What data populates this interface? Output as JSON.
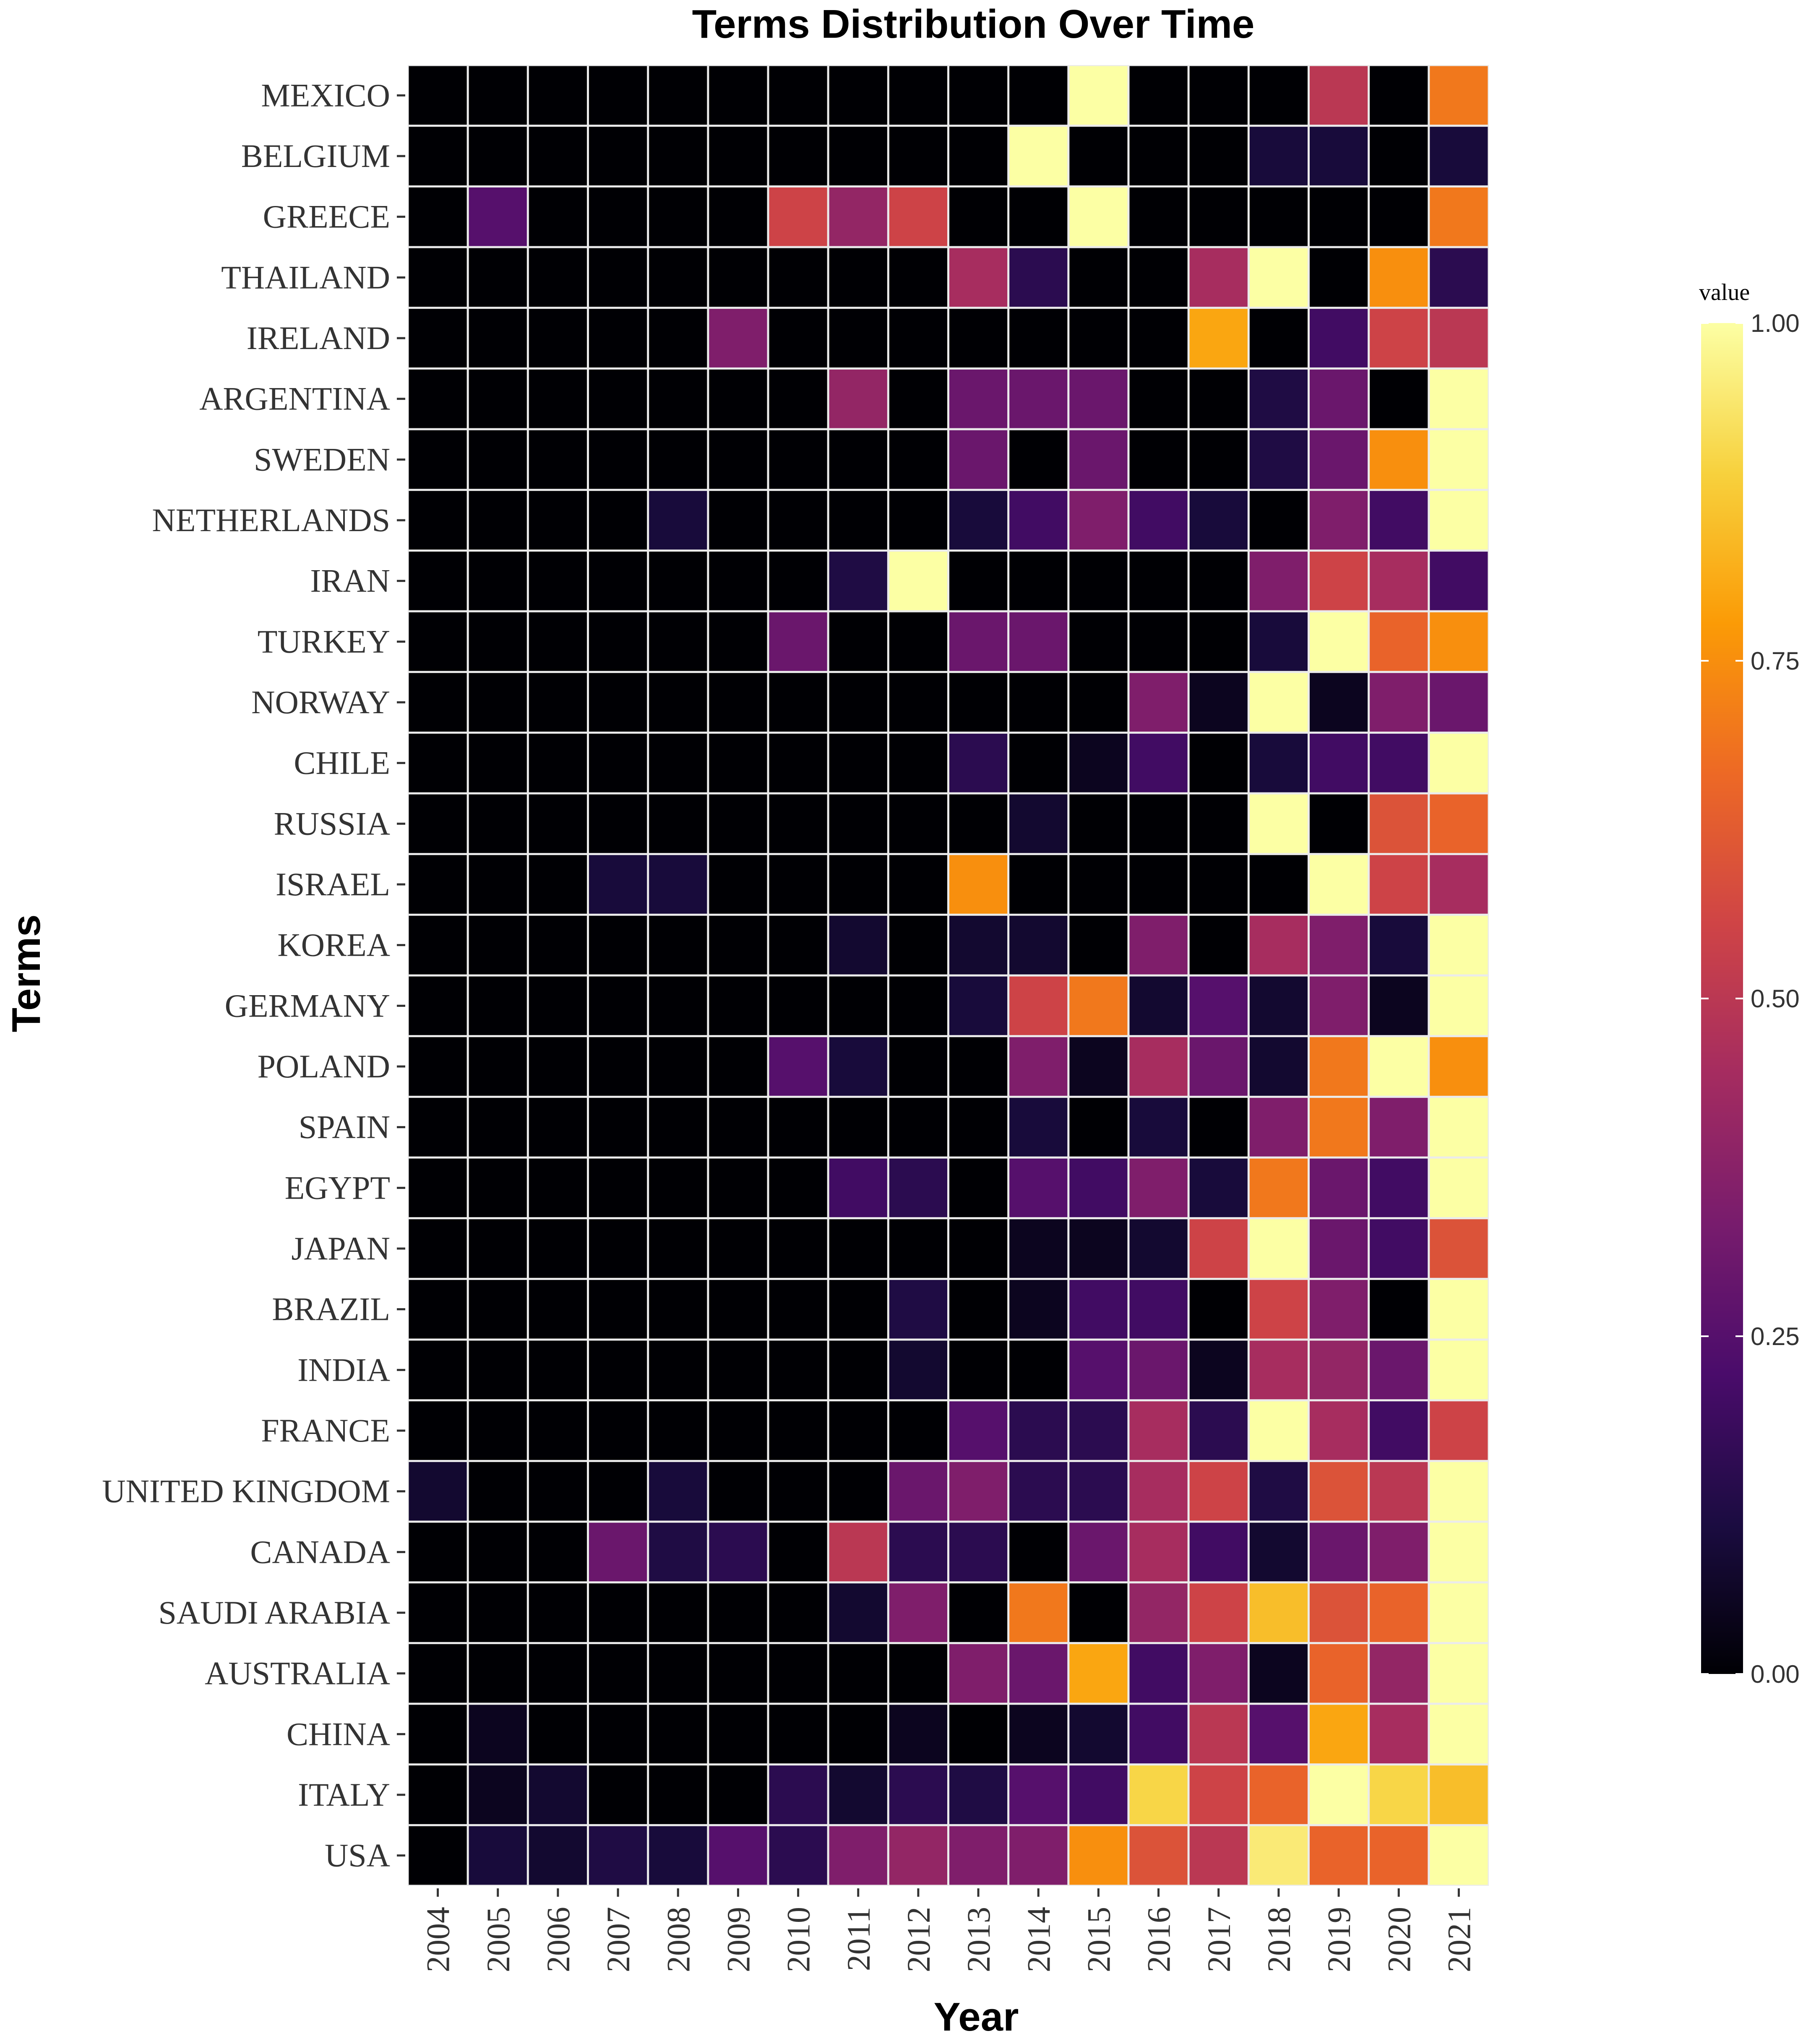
{
  "chart_data": {
    "type": "heatmap",
    "title": "Terms Distribution Over Time",
    "xlabel": "Year",
    "ylabel": "Terms",
    "legend_title": "value",
    "value_range": [
      0,
      1
    ],
    "legend_ticks": [
      "0.00",
      "0.25",
      "0.50",
      "0.75",
      "1.00"
    ],
    "legend_tick_values": [
      0,
      0.25,
      0.5,
      0.75,
      1
    ],
    "colormap": [
      "#000004",
      "#1b0c41",
      "#4a0c6b",
      "#781c6d",
      "#a52c60",
      "#cf4446",
      "#ed6925",
      "#fb9b06",
      "#f7d13d",
      "#fcffa4"
    ],
    "x": [
      "2004",
      "2005",
      "2006",
      "2007",
      "2008",
      "2009",
      "2010",
      "2011",
      "2012",
      "2013",
      "2014",
      "2015",
      "2016",
      "2017",
      "2018",
      "2019",
      "2020",
      "2021"
    ],
    "y": [
      "MEXICO",
      "BELGIUM",
      "GREECE",
      "THAILAND",
      "IRELAND",
      "ARGENTINA",
      "SWEDEN",
      "NETHERLANDS",
      "IRAN",
      "TURKEY",
      "NORWAY",
      "CHILE",
      "RUSSIA",
      "ISRAEL",
      "KOREA",
      "GERMANY",
      "POLAND",
      "SPAIN",
      "EGYPT",
      "JAPAN",
      "BRAZIL",
      "INDIA",
      "FRANCE",
      "UNITED KINGDOM",
      "CANADA",
      "SAUDI ARABIA",
      "AUSTRALIA",
      "CHINA",
      "ITALY",
      "USA"
    ],
    "values": [
      [
        0,
        0,
        0,
        0,
        0,
        0,
        0,
        0,
        0,
        0,
        0,
        1.0,
        0,
        0,
        0,
        0.5,
        0,
        0.7
      ],
      [
        0,
        0,
        0,
        0,
        0,
        0,
        0,
        0,
        0,
        0,
        1.0,
        0,
        0,
        0,
        0.1,
        0.1,
        0,
        0.1
      ],
      [
        0,
        0.25,
        0,
        0,
        0,
        0,
        0.55,
        0.4,
        0.55,
        0,
        0,
        1.0,
        0,
        0,
        0,
        0,
        0,
        0.7
      ],
      [
        0,
        0,
        0,
        0,
        0,
        0,
        0,
        0,
        0,
        0.45,
        0.15,
        0,
        0,
        0.45,
        1.0,
        0,
        0.75,
        0.15
      ],
      [
        0,
        0,
        0,
        0,
        0,
        0.35,
        0,
        0,
        0,
        0,
        0,
        0,
        0,
        0.8,
        0,
        0.2,
        0.55,
        0.5
      ],
      [
        0,
        0,
        0,
        0,
        0,
        0,
        0,
        0.4,
        0,
        0.3,
        0.3,
        0.3,
        0,
        0,
        0.12,
        0.3,
        0,
        1.0
      ],
      [
        0,
        0,
        0,
        0,
        0,
        0,
        0,
        0,
        0,
        0.3,
        0,
        0.3,
        0,
        0,
        0.12,
        0.3,
        0.75,
        1.0
      ],
      [
        0,
        0,
        0,
        0,
        0.1,
        0,
        0,
        0,
        0,
        0.1,
        0.2,
        0.35,
        0.2,
        0.1,
        0,
        0.35,
        0.2,
        1.0
      ],
      [
        0,
        0,
        0,
        0,
        0,
        0,
        0,
        0.12,
        1.0,
        0,
        0,
        0,
        0,
        0,
        0.35,
        0.55,
        0.45,
        0.2
      ],
      [
        0,
        0,
        0,
        0,
        0,
        0,
        0.3,
        0,
        0,
        0.3,
        0.3,
        0,
        0,
        0,
        0.1,
        1.0,
        0.65,
        0.75
      ],
      [
        0,
        0,
        0,
        0,
        0,
        0,
        0,
        0,
        0,
        0,
        0,
        0,
        0.35,
        0.05,
        1.0,
        0.05,
        0.35,
        0.3
      ],
      [
        0,
        0,
        0,
        0,
        0,
        0,
        0,
        0,
        0,
        0.15,
        0,
        0.05,
        0.2,
        0,
        0.1,
        0.2,
        0.2,
        1.0
      ],
      [
        0,
        0,
        0,
        0,
        0,
        0,
        0,
        0,
        0,
        0,
        0.08,
        0,
        0,
        0,
        1.0,
        0,
        0.6,
        0.65
      ],
      [
        0,
        0,
        0,
        0.1,
        0.1,
        0,
        0,
        0,
        0,
        0.75,
        0,
        0,
        0,
        0,
        0,
        1.0,
        0.55,
        0.45
      ],
      [
        0,
        0,
        0,
        0,
        0,
        0,
        0,
        0.08,
        0,
        0.08,
        0.08,
        0,
        0.35,
        0,
        0.45,
        0.35,
        0.1,
        1.0
      ],
      [
        0,
        0,
        0,
        0,
        0,
        0,
        0,
        0,
        0,
        0.1,
        0.55,
        0.7,
        0.08,
        0.25,
        0.08,
        0.35,
        0.05,
        1.0
      ],
      [
        0,
        0,
        0,
        0,
        0,
        0,
        0.25,
        0.1,
        0,
        0,
        0.35,
        0.05,
        0.45,
        0.3,
        0.08,
        0.7,
        1.0,
        0.75
      ],
      [
        0,
        0,
        0,
        0,
        0,
        0,
        0,
        0,
        0,
        0,
        0.1,
        0,
        0.1,
        0,
        0.35,
        0.7,
        0.35,
        1.0
      ],
      [
        0,
        0,
        0,
        0,
        0,
        0,
        0,
        0.2,
        0.15,
        0,
        0.25,
        0.2,
        0.35,
        0.1,
        0.7,
        0.3,
        0.2,
        1.0
      ],
      [
        0,
        0,
        0,
        0,
        0,
        0,
        0,
        0,
        0,
        0,
        0.05,
        0.05,
        0.08,
        0.55,
        1.0,
        0.3,
        0.2,
        0.6
      ],
      [
        0,
        0,
        0,
        0,
        0,
        0,
        0,
        0,
        0.12,
        0,
        0.05,
        0.2,
        0.2,
        0,
        0.55,
        0.35,
        0,
        1.0
      ],
      [
        0,
        0,
        0,
        0,
        0,
        0,
        0,
        0,
        0.08,
        0,
        0,
        0.25,
        0.3,
        0.05,
        0.45,
        0.4,
        0.3,
        1.0
      ],
      [
        0,
        0,
        0,
        0,
        0,
        0,
        0,
        0,
        0,
        0.25,
        0.15,
        0.15,
        0.45,
        0.15,
        1.0,
        0.45,
        0.2,
        0.55
      ],
      [
        0.08,
        0,
        0,
        0,
        0.1,
        0,
        0,
        0,
        0.3,
        0.35,
        0.15,
        0.15,
        0.45,
        0.55,
        0.12,
        0.6,
        0.5,
        1.0
      ],
      [
        0,
        0,
        0,
        0.3,
        0.12,
        0.15,
        0,
        0.5,
        0.15,
        0.15,
        0,
        0.3,
        0.45,
        0.2,
        0.08,
        0.3,
        0.35,
        1.0
      ],
      [
        0,
        0,
        0,
        0,
        0,
        0,
        0,
        0.08,
        0.35,
        0,
        0.7,
        0,
        0.4,
        0.55,
        0.85,
        0.6,
        0.65,
        1.0
      ],
      [
        0,
        0,
        0,
        0,
        0,
        0,
        0,
        0,
        0,
        0.35,
        0.3,
        0.8,
        0.2,
        0.35,
        0.05,
        0.65,
        0.4,
        1.0
      ],
      [
        0,
        0.05,
        0,
        0,
        0,
        0,
        0,
        0,
        0.05,
        0,
        0.05,
        0.08,
        0.2,
        0.5,
        0.25,
        0.8,
        0.45,
        1.0
      ],
      [
        0,
        0.05,
        0.08,
        0,
        0,
        0,
        0.15,
        0.08,
        0.15,
        0.12,
        0.25,
        0.2,
        0.9,
        0.55,
        0.65,
        1.0,
        0.9,
        0.85
      ],
      [
        0,
        0.1,
        0.08,
        0.12,
        0.1,
        0.25,
        0.15,
        0.35,
        0.4,
        0.35,
        0.35,
        0.75,
        0.6,
        0.5,
        0.95,
        0.65,
        0.65,
        1.0
      ]
    ]
  }
}
